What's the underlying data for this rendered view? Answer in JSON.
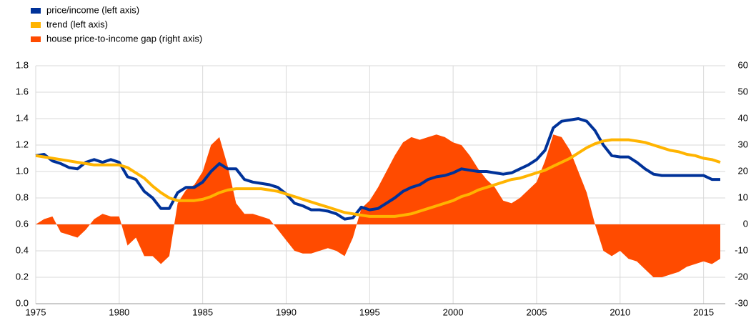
{
  "chart_data": {
    "type": "line",
    "x": [
      1975,
      1975.5,
      1976,
      1976.5,
      1977,
      1977.5,
      1978,
      1978.5,
      1979,
      1979.5,
      1980,
      1980.5,
      1981,
      1981.5,
      1982,
      1982.5,
      1983,
      1983.5,
      1984,
      1984.5,
      1985,
      1985.5,
      1986,
      1986.5,
      1987,
      1987.5,
      1988,
      1988.5,
      1989,
      1989.5,
      1990,
      1990.5,
      1991,
      1991.5,
      1992,
      1992.5,
      1993,
      1993.5,
      1994,
      1994.5,
      1995,
      1995.5,
      1996,
      1996.5,
      1997,
      1997.5,
      1998,
      1998.5,
      1999,
      1999.5,
      2000,
      2000.5,
      2001,
      2001.5,
      2002,
      2002.5,
      2003,
      2003.5,
      2004,
      2004.5,
      2005,
      2005.5,
      2006,
      2006.5,
      2007,
      2007.5,
      2008,
      2008.5,
      2009,
      2009.5,
      2010,
      2010.5,
      2011,
      2011.5,
      2012,
      2012.5,
      2013,
      2013.5,
      2014,
      2014.5,
      2015,
      2015.5,
      2016
    ],
    "series": [
      {
        "name": "house price-to-income gap (right axis)",
        "color": "#ff4b00",
        "type": "area",
        "axis": "y2",
        "values": [
          0,
          2,
          3,
          -3,
          -4,
          -5,
          -2,
          2,
          4,
          3,
          3,
          -8,
          -5,
          -12,
          -12,
          -15,
          -12,
          8,
          13,
          15,
          20,
          30,
          33,
          22,
          8,
          4,
          4,
          3,
          2,
          -2,
          -6,
          -10,
          -11,
          -11,
          -10,
          -9,
          -10,
          -12,
          -5,
          6,
          9,
          14,
          20,
          26,
          31,
          33,
          32,
          33,
          34,
          33,
          31,
          30,
          26,
          21,
          17,
          14,
          9,
          8,
          10,
          13,
          16,
          24,
          34,
          33,
          28,
          20,
          12,
          0,
          -10,
          -12,
          -10,
          -13,
          -14,
          -17,
          -20,
          -20,
          -19,
          -18,
          -16,
          -15,
          -14,
          -15,
          -13
        ]
      },
      {
        "name": "price/income (left axis)",
        "color": "#003299",
        "type": "line",
        "values": [
          1.12,
          1.13,
          1.08,
          1.06,
          1.03,
          1.02,
          1.07,
          1.09,
          1.07,
          1.09,
          1.07,
          0.96,
          0.94,
          0.85,
          0.8,
          0.72,
          0.72,
          0.84,
          0.88,
          0.88,
          0.92,
          1.0,
          1.06,
          1.02,
          1.02,
          0.94,
          0.92,
          0.91,
          0.9,
          0.88,
          0.83,
          0.76,
          0.74,
          0.71,
          0.71,
          0.7,
          0.68,
          0.64,
          0.65,
          0.73,
          0.71,
          0.72,
          0.76,
          0.8,
          0.85,
          0.88,
          0.9,
          0.94,
          0.96,
          0.97,
          0.99,
          1.02,
          1.01,
          1.0,
          1.0,
          0.99,
          0.98,
          0.99,
          1.02,
          1.05,
          1.09,
          1.16,
          1.33,
          1.38,
          1.39,
          1.4,
          1.38,
          1.31,
          1.2,
          1.12,
          1.11,
          1.11,
          1.07,
          1.02,
          0.98,
          0.97,
          0.97,
          0.97,
          0.97,
          0.97,
          0.97,
          0.94,
          0.94
        ]
      },
      {
        "name": "trend (left axis)",
        "color": "#ffb400",
        "type": "line",
        "values": [
          1.12,
          1.11,
          1.1,
          1.09,
          1.08,
          1.07,
          1.06,
          1.05,
          1.05,
          1.05,
          1.05,
          1.03,
          0.99,
          0.95,
          0.89,
          0.84,
          0.8,
          0.78,
          0.78,
          0.78,
          0.79,
          0.81,
          0.84,
          0.86,
          0.87,
          0.87,
          0.87,
          0.87,
          0.86,
          0.85,
          0.83,
          0.81,
          0.79,
          0.77,
          0.75,
          0.73,
          0.71,
          0.69,
          0.68,
          0.67,
          0.66,
          0.66,
          0.66,
          0.66,
          0.67,
          0.68,
          0.7,
          0.72,
          0.74,
          0.76,
          0.78,
          0.81,
          0.83,
          0.86,
          0.88,
          0.9,
          0.92,
          0.94,
          0.95,
          0.97,
          0.99,
          1.01,
          1.04,
          1.07,
          1.1,
          1.14,
          1.18,
          1.21,
          1.23,
          1.24,
          1.24,
          1.24,
          1.23,
          1.22,
          1.2,
          1.18,
          1.16,
          1.15,
          1.13,
          1.12,
          1.1,
          1.09,
          1.07
        ]
      }
    ],
    "legend_order": [
      1,
      2,
      0
    ],
    "xlim": [
      1975,
      2016.3
    ],
    "xticks": [
      1975,
      1980,
      1985,
      1990,
      1995,
      2000,
      2005,
      2010,
      2015
    ],
    "ylim": [
      0,
      1.8
    ],
    "yticks": [
      {
        "value": 0,
        "label": "0.0"
      },
      0.2,
      0.4,
      0.6,
      0.8,
      {
        "value": 1,
        "label": "1.0"
      },
      1.2,
      1.4,
      1.6,
      1.8
    ],
    "y2lim": [
      -30,
      60
    ],
    "y2ticks": [
      -30,
      -20,
      -10,
      0,
      10,
      20,
      30,
      40,
      50,
      60
    ],
    "grid": true
  }
}
